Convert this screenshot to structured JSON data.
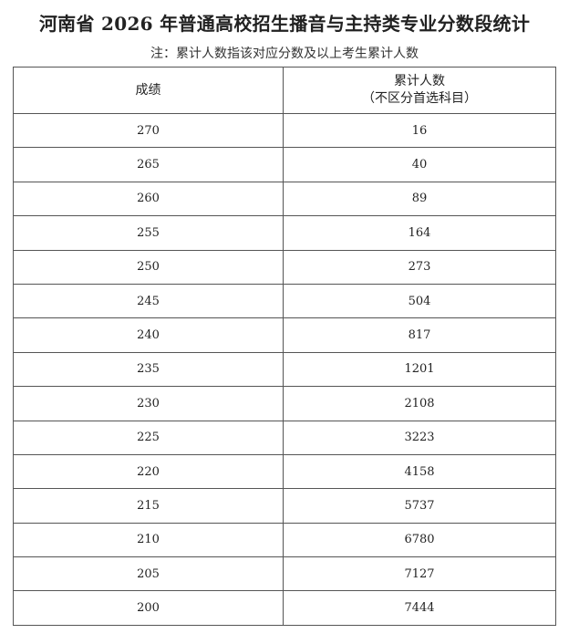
{
  "title": "河南省 2026 年普通高校招生播音与主持类专业分数段统计",
  "note": "注：累计人数指该对应分数及以上考生累计人数",
  "table": {
    "headers": {
      "score": "成绩",
      "cumulative": "累计人数",
      "cumulative_sub": "（不区分首选科目）"
    },
    "rows": [
      {
        "score": "270",
        "count": "16"
      },
      {
        "score": "265",
        "count": "40"
      },
      {
        "score": "260",
        "count": "89"
      },
      {
        "score": "255",
        "count": "164"
      },
      {
        "score": "250",
        "count": "273"
      },
      {
        "score": "245",
        "count": "504"
      },
      {
        "score": "240",
        "count": "817"
      },
      {
        "score": "235",
        "count": "1201"
      },
      {
        "score": "230",
        "count": "2108"
      },
      {
        "score": "225",
        "count": "3223"
      },
      {
        "score": "220",
        "count": "4158"
      },
      {
        "score": "215",
        "count": "5737"
      },
      {
        "score": "210",
        "count": "6780"
      },
      {
        "score": "205",
        "count": "7127"
      },
      {
        "score": "200",
        "count": "7444"
      }
    ]
  }
}
